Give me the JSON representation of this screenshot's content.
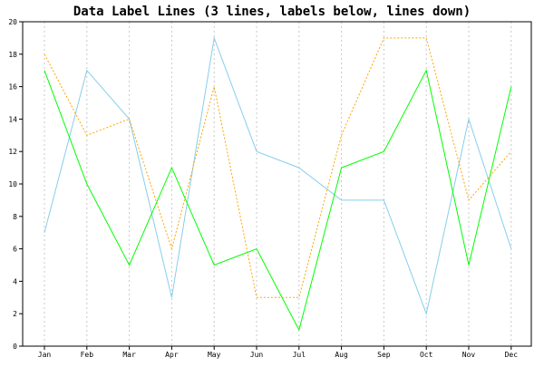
{
  "chart_data": {
    "type": "line",
    "title": "Data Label Lines (3 lines, labels below, lines down)",
    "xlabel": "",
    "ylabel": "",
    "categories": [
      "Jan",
      "Feb",
      "Mar",
      "Apr",
      "May",
      "Jun",
      "Jul",
      "Aug",
      "Sep",
      "Oct",
      "Nov",
      "Dec"
    ],
    "ylim": [
      0,
      20
    ],
    "yticks": [
      0,
      2,
      4,
      6,
      8,
      10,
      12,
      14,
      16,
      18,
      20
    ],
    "grid": "vertical dotted",
    "series": [
      {
        "values": [
          7,
          17,
          14,
          3,
          19,
          12,
          11,
          9,
          9,
          2,
          14,
          6
        ],
        "color": "#87ceeb",
        "style": "solid"
      },
      {
        "values": [
          18,
          13,
          14,
          6,
          16,
          3,
          3,
          13,
          19,
          19,
          9,
          12
        ],
        "color": "#ffa500",
        "style": "dotted"
      },
      {
        "values": [
          17,
          10,
          5,
          11,
          5,
          6,
          1,
          11,
          12,
          17,
          5,
          16
        ],
        "color": "#00ff00",
        "style": "solid"
      }
    ]
  }
}
